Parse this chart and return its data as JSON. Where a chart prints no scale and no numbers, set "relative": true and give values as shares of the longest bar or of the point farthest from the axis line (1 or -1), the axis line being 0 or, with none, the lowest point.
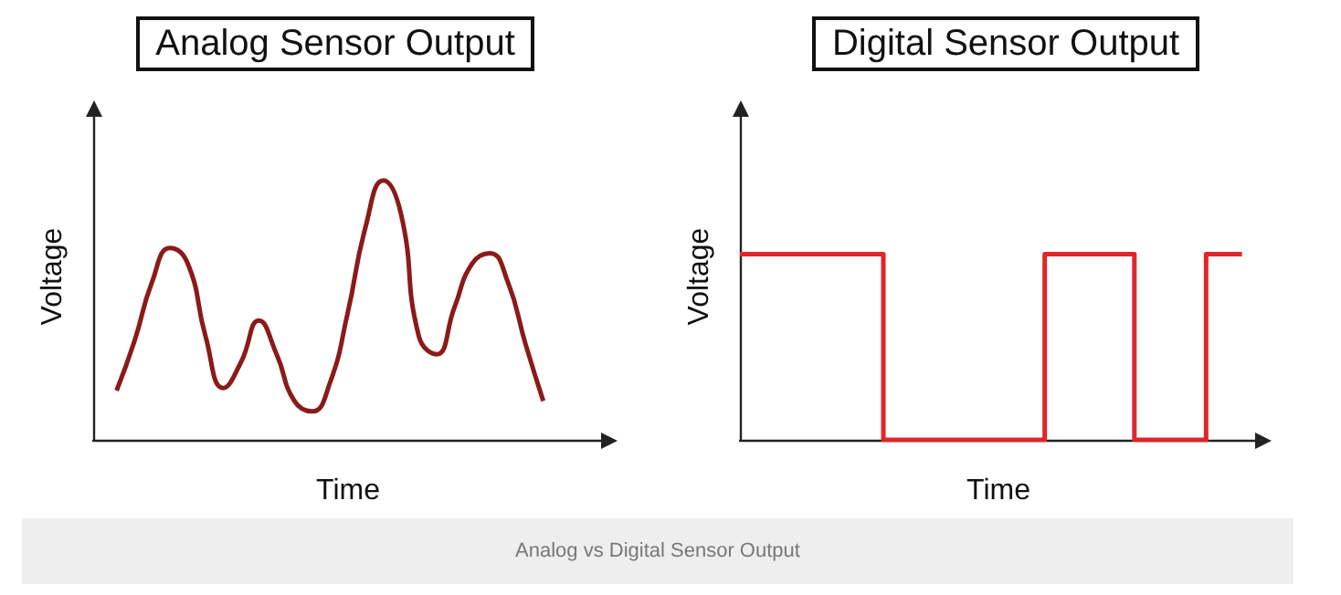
{
  "chart_data": [
    {
      "type": "line",
      "title": "Analog Sensor Output",
      "xlabel": "Time",
      "ylabel": "Voltage",
      "relative": true,
      "grid": false,
      "marker": "none",
      "categories": [
        null,
        null,
        null,
        null,
        null,
        null,
        null,
        null,
        null,
        null,
        null,
        null,
        null,
        null,
        null,
        null,
        null,
        null,
        null,
        null,
        null,
        null,
        null,
        null,
        null
      ],
      "series": [
        {
          "color": "#8b1a1a",
          "values": [
            0.19,
            0.38,
            0.61,
            0.74,
            0.68,
            0.4,
            0.2,
            0.3,
            0.46,
            0.33,
            0.15,
            0.11,
            0.22,
            0.49,
            0.82,
            1.0,
            0.87,
            0.4,
            0.33,
            0.51,
            0.68,
            0.72,
            0.61,
            0.37,
            0.15
          ]
        }
      ],
      "annotations": [
        "Analog vs Digital Sensor Output"
      ]
    },
    {
      "type": "step",
      "title": "Digital Sensor Output",
      "xlabel": "Time",
      "ylabel": "Voltage",
      "relative": true,
      "grid": false,
      "marker": "none",
      "categories": [
        null,
        null,
        null,
        null,
        null,
        null,
        null,
        null,
        null,
        null,
        null,
        null,
        null,
        null,
        null,
        null,
        null,
        null,
        null,
        null,
        null,
        null,
        null,
        null,
        null,
        null,
        null,
        null,
        null
      ],
      "series": [
        {
          "color": "#e0262a",
          "values": [
            1,
            1,
            1,
            1,
            1,
            1,
            1,
            1,
            0,
            0,
            0,
            0,
            0,
            0,
            0,
            0,
            0,
            1,
            1,
            1,
            1,
            1,
            0,
            0,
            0,
            0,
            1,
            1,
            1
          ]
        }
      ]
    }
  ]
}
